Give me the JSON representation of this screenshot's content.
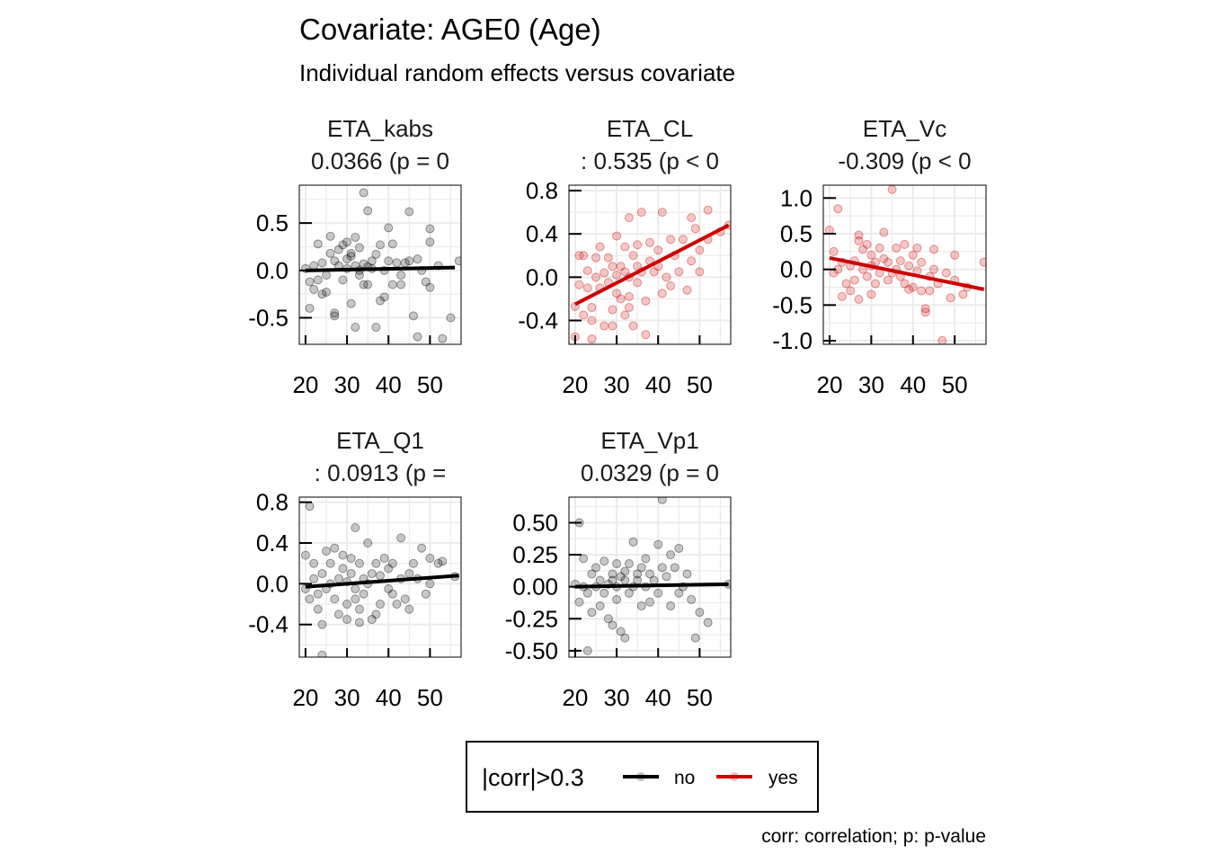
{
  "title": "Covariate: AGE0 (Age)",
  "subtitle": "Individual random effects versus covariate",
  "caption": "corr: correlation; p: p-value",
  "legend": {
    "title": "|corr|>0.3",
    "items": [
      {
        "label": "no",
        "color": "#000000"
      },
      {
        "label": "yes",
        "color": "#cc0000"
      }
    ]
  },
  "colors": {
    "no": "#000000",
    "yes": "#cc0000",
    "grid": "#ebebeb",
    "panel_border": "#000000"
  },
  "chart_data": [
    {
      "type": "scatter",
      "name": "ETA_kabs",
      "stat_label": "0.0366 (p = 0",
      "highlight": false,
      "xlim": [
        18.5,
        57.5
      ],
      "ylim": [
        -0.78,
        0.9
      ],
      "xticks": [
        20,
        30,
        40,
        50
      ],
      "yticks": [
        -0.5,
        0.0,
        0.5
      ],
      "ytick_labels": [
        "-0.5",
        "0.0",
        "0.5"
      ],
      "trend": {
        "x": [
          20,
          56
        ],
        "y": [
          0.0,
          0.03
        ]
      },
      "points": [
        [
          20,
          0.02
        ],
        [
          21,
          -0.12
        ],
        [
          21,
          -0.4
        ],
        [
          22,
          -0.2
        ],
        [
          22,
          0.05
        ],
        [
          23,
          0.28
        ],
        [
          23,
          -0.1
        ],
        [
          24,
          -0.25
        ],
        [
          24,
          0.08
        ],
        [
          25,
          -0.23
        ],
        [
          25,
          -0.05
        ],
        [
          26,
          0.18
        ],
        [
          26,
          0.36
        ],
        [
          27,
          -0.45
        ],
        [
          27,
          0.1
        ],
        [
          27,
          -0.48
        ],
        [
          28,
          0.05
        ],
        [
          28,
          0.22
        ],
        [
          29,
          0.27
        ],
        [
          29,
          -0.1
        ],
        [
          30,
          0.3
        ],
        [
          30,
          0.12
        ],
        [
          30,
          0.02
        ],
        [
          31,
          -0.35
        ],
        [
          31,
          0.15
        ],
        [
          31,
          0.18
        ],
        [
          32,
          0.35
        ],
        [
          32,
          -0.6
        ],
        [
          32,
          0.05
        ],
        [
          33,
          0.24
        ],
        [
          33,
          0.0
        ],
        [
          33,
          -0.05
        ],
        [
          34,
          -0.15
        ],
        [
          34,
          0.07
        ],
        [
          34,
          0.82
        ],
        [
          35,
          -0.15
        ],
        [
          35,
          0.63
        ],
        [
          35,
          0.04
        ],
        [
          36,
          0.1
        ],
        [
          36,
          0.02
        ],
        [
          37,
          0.17
        ],
        [
          37,
          -0.6
        ],
        [
          38,
          -0.32
        ],
        [
          38,
          0.27
        ],
        [
          39,
          -0.28
        ],
        [
          39,
          0.0
        ],
        [
          40,
          0.1
        ],
        [
          40,
          0.45
        ],
        [
          41,
          -0.15
        ],
        [
          41,
          0.28
        ],
        [
          42,
          0.08
        ],
        [
          43,
          -0.05
        ],
        [
          43,
          -0.15
        ],
        [
          44,
          0.08
        ],
        [
          45,
          0.62
        ],
        [
          45,
          0.1
        ],
        [
          46,
          -0.48
        ],
        [
          47,
          0.12
        ],
        [
          47,
          -0.7
        ],
        [
          48,
          0.0
        ],
        [
          49,
          -0.12
        ],
        [
          50,
          -0.18
        ],
        [
          50,
          0.3
        ],
        [
          50,
          0.44
        ],
        [
          52,
          0.05
        ],
        [
          53,
          -0.72
        ],
        [
          55,
          -0.5
        ],
        [
          57,
          0.1
        ]
      ]
    },
    {
      "type": "scatter",
      "name": "ETA_CL",
      "stat_label": ": 0.535 (p < 0",
      "highlight": true,
      "xlim": [
        18.5,
        57.5
      ],
      "ylim": [
        -0.62,
        0.85
      ],
      "xticks": [
        20,
        30,
        40,
        50
      ],
      "yticks": [
        -0.4,
        0.0,
        0.4,
        0.8
      ],
      "ytick_labels": [
        "-0.4",
        "0.0",
        "0.4",
        "0.8"
      ],
      "trend": {
        "x": [
          20,
          57
        ],
        "y": [
          -0.25,
          0.48
        ]
      },
      "points": [
        [
          20,
          -0.27
        ],
        [
          20,
          -0.55
        ],
        [
          21,
          -0.07
        ],
        [
          21,
          0.2
        ],
        [
          22,
          0.2
        ],
        [
          22,
          -0.35
        ],
        [
          23,
          -0.1
        ],
        [
          23,
          0.06
        ],
        [
          24,
          -0.28
        ],
        [
          24,
          -0.4
        ],
        [
          25,
          0.0
        ],
        [
          25,
          0.18
        ],
        [
          26,
          -0.1
        ],
        [
          26,
          0.28
        ],
        [
          27,
          -0.45
        ],
        [
          27,
          0.04
        ],
        [
          28,
          0.18
        ],
        [
          28,
          -0.05
        ],
        [
          29,
          -0.3
        ],
        [
          29,
          0.1
        ],
        [
          30,
          0.02
        ],
        [
          30,
          -0.15
        ],
        [
          30,
          0.38
        ],
        [
          31,
          0.1
        ],
        [
          31,
          -0.2
        ],
        [
          32,
          0.05
        ],
        [
          32,
          -0.35
        ],
        [
          32,
          0.28
        ],
        [
          33,
          -0.18
        ],
        [
          33,
          0.55
        ],
        [
          33,
          0.0
        ],
        [
          34,
          0.2
        ],
        [
          34,
          -0.45
        ],
        [
          35,
          0.1
        ],
        [
          35,
          -0.05
        ],
        [
          35,
          0.3
        ],
        [
          36,
          0.6
        ],
        [
          36,
          0.05
        ],
        [
          37,
          -0.22
        ],
        [
          37,
          -0.53
        ],
        [
          38,
          0.15
        ],
        [
          38,
          0.32
        ],
        [
          39,
          0.05
        ],
        [
          40,
          0.1
        ],
        [
          40,
          0.25
        ],
        [
          41,
          -0.15
        ],
        [
          41,
          0.6
        ],
        [
          42,
          0.0
        ],
        [
          43,
          0.35
        ],
        [
          43,
          -0.08
        ],
        [
          44,
          0.2
        ],
        [
          45,
          0.05
        ],
        [
          46,
          0.35
        ],
        [
          47,
          -0.12
        ],
        [
          48,
          0.15
        ],
        [
          48,
          0.55
        ],
        [
          49,
          0.45
        ],
        [
          50,
          0.25
        ],
        [
          50,
          0.05
        ],
        [
          52,
          0.35
        ],
        [
          52,
          0.62
        ],
        [
          55,
          0.42
        ],
        [
          57,
          0.48
        ],
        [
          24,
          -0.57
        ],
        [
          29,
          -0.45
        ],
        [
          33,
          -0.28
        ]
      ]
    },
    {
      "type": "scatter",
      "name": "ETA_Vc",
      "stat_label": "-0.309 (p < 0",
      "highlight": true,
      "xlim": [
        18.5,
        57.5
      ],
      "ylim": [
        -1.05,
        1.18
      ],
      "xticks": [
        20,
        30,
        40,
        50
      ],
      "yticks": [
        -1.0,
        -0.5,
        0.0,
        0.5,
        1.0
      ],
      "ytick_labels": [
        "-1.0",
        "-0.5",
        "0.0",
        "0.5",
        "1.0"
      ],
      "trend": {
        "x": [
          20,
          57
        ],
        "y": [
          0.16,
          -0.28
        ]
      },
      "points": [
        [
          20,
          0.55
        ],
        [
          21,
          0.25
        ],
        [
          21,
          -0.05
        ],
        [
          22,
          0.85
        ],
        [
          22,
          0.0
        ],
        [
          23,
          -0.38
        ],
        [
          23,
          0.1
        ],
        [
          24,
          -0.2
        ],
        [
          25,
          0.05
        ],
        [
          25,
          -0.3
        ],
        [
          26,
          -0.15
        ],
        [
          26,
          0.12
        ],
        [
          27,
          0.4
        ],
        [
          27,
          -0.42
        ],
        [
          28,
          0.28
        ],
        [
          28,
          0.0
        ],
        [
          29,
          0.35
        ],
        [
          29,
          -0.1
        ],
        [
          30,
          0.05
        ],
        [
          30,
          -0.35
        ],
        [
          30,
          0.2
        ],
        [
          31,
          0.1
        ],
        [
          31,
          -0.2
        ],
        [
          32,
          0.3
        ],
        [
          32,
          -0.05
        ],
        [
          33,
          0.15
        ],
        [
          33,
          0.52
        ],
        [
          34,
          -0.15
        ],
        [
          34,
          0.1
        ],
        [
          35,
          1.12
        ],
        [
          35,
          -0.05
        ],
        [
          36,
          0.3
        ],
        [
          36,
          0.0
        ],
        [
          37,
          0.12
        ],
        [
          37,
          -0.1
        ],
        [
          38,
          0.35
        ],
        [
          38,
          -0.2
        ],
        [
          39,
          0.05
        ],
        [
          40,
          -0.25
        ],
        [
          40,
          0.2
        ],
        [
          41,
          0.3
        ],
        [
          41,
          -0.02
        ],
        [
          42,
          0.1
        ],
        [
          42,
          -0.3
        ],
        [
          43,
          -0.55
        ],
        [
          43,
          -0.6
        ],
        [
          44,
          -0.1
        ],
        [
          45,
          0.0
        ],
        [
          45,
          0.28
        ],
        [
          46,
          -0.2
        ],
        [
          47,
          -1.0
        ],
        [
          48,
          -0.05
        ],
        [
          49,
          -0.4
        ],
        [
          50,
          0.2
        ],
        [
          50,
          -0.15
        ],
        [
          52,
          -0.35
        ],
        [
          53,
          -0.25
        ],
        [
          57,
          0.1
        ],
        [
          44,
          -0.3
        ],
        [
          39,
          -0.28
        ],
        [
          27,
          0.48
        ]
      ]
    },
    {
      "type": "scatter",
      "name": "ETA_Q1",
      "stat_label": ": 0.0913 (p =",
      "highlight": false,
      "xlim": [
        18.5,
        57.5
      ],
      "ylim": [
        -0.72,
        0.85
      ],
      "xticks": [
        20,
        30,
        40,
        50
      ],
      "yticks": [
        -0.4,
        0.0,
        0.4,
        0.8
      ],
      "ytick_labels": [
        "-0.4",
        "0.0",
        "0.4",
        "0.8"
      ],
      "trend": {
        "x": [
          20,
          57
        ],
        "y": [
          -0.03,
          0.08
        ]
      },
      "points": [
        [
          20,
          0.28
        ],
        [
          20,
          -0.05
        ],
        [
          21,
          0.76
        ],
        [
          21,
          -0.15
        ],
        [
          22,
          0.05
        ],
        [
          22,
          0.2
        ],
        [
          23,
          -0.1
        ],
        [
          23,
          -0.25
        ],
        [
          24,
          0.1
        ],
        [
          24,
          -0.4
        ],
        [
          25,
          0.32
        ],
        [
          25,
          -0.05
        ],
        [
          26,
          0.2
        ],
        [
          26,
          0.0
        ],
        [
          27,
          -0.15
        ],
        [
          27,
          0.35
        ],
        [
          28,
          0.05
        ],
        [
          28,
          -0.3
        ],
        [
          29,
          0.15
        ],
        [
          29,
          0.28
        ],
        [
          30,
          -0.35
        ],
        [
          30,
          0.02
        ],
        [
          30,
          -0.2
        ],
        [
          31,
          0.1
        ],
        [
          31,
          0.25
        ],
        [
          32,
          -0.05
        ],
        [
          32,
          0.55
        ],
        [
          32,
          -0.15
        ],
        [
          33,
          0.2
        ],
        [
          33,
          -0.25
        ],
        [
          34,
          0.05
        ],
        [
          34,
          -0.1
        ],
        [
          35,
          0.4
        ],
        [
          35,
          0.0
        ],
        [
          36,
          -0.35
        ],
        [
          36,
          0.1
        ],
        [
          37,
          0.2
        ],
        [
          37,
          -0.3
        ],
        [
          38,
          0.08
        ],
        [
          38,
          -0.2
        ],
        [
          39,
          0.25
        ],
        [
          40,
          -0.05
        ],
        [
          40,
          0.15
        ],
        [
          41,
          0.2
        ],
        [
          41,
          -0.1
        ],
        [
          42,
          -0.2
        ],
        [
          43,
          0.05
        ],
        [
          43,
          0.45
        ],
        [
          44,
          -0.15
        ],
        [
          45,
          0.1
        ],
        [
          45,
          -0.25
        ],
        [
          46,
          0.2
        ],
        [
          47,
          0.05
        ],
        [
          48,
          0.35
        ],
        [
          49,
          -0.1
        ],
        [
          50,
          0.25
        ],
        [
          50,
          0.0
        ],
        [
          52,
          0.2
        ],
        [
          53,
          0.22
        ],
        [
          56,
          0.07
        ],
        [
          24,
          -0.7
        ],
        [
          33,
          -0.38
        ]
      ]
    },
    {
      "type": "scatter",
      "name": "ETA_Vp1",
      "stat_label": "0.0329 (p = 0",
      "highlight": false,
      "xlim": [
        18.5,
        57.5
      ],
      "ylim": [
        -0.55,
        0.7
      ],
      "xticks": [
        20,
        30,
        40,
        50
      ],
      "yticks": [
        -0.5,
        -0.25,
        0.0,
        0.25,
        0.5
      ],
      "ytick_labels": [
        "-0.50",
        "-0.25",
        "0.00",
        "0.25",
        "0.50"
      ],
      "trend": {
        "x": [
          20,
          57
        ],
        "y": [
          0.0,
          0.02
        ]
      },
      "points": [
        [
          20,
          0.02
        ],
        [
          21,
          0.5
        ],
        [
          21,
          -0.12
        ],
        [
          22,
          0.0
        ],
        [
          22,
          0.22
        ],
        [
          23,
          -0.05
        ],
        [
          23,
          -0.5
        ],
        [
          24,
          0.1
        ],
        [
          24,
          -0.2
        ],
        [
          25,
          0.15
        ],
        [
          25,
          0.0
        ],
        [
          26,
          -0.15
        ],
        [
          26,
          0.05
        ],
        [
          27,
          0.2
        ],
        [
          27,
          -0.05
        ],
        [
          28,
          0.02
        ],
        [
          28,
          -0.25
        ],
        [
          29,
          0.1
        ],
        [
          29,
          0.05
        ],
        [
          30,
          -0.1
        ],
        [
          30,
          0.18
        ],
        [
          30,
          0.0
        ],
        [
          31,
          0.08
        ],
        [
          31,
          -0.35
        ],
        [
          32,
          -0.4
        ],
        [
          32,
          0.05
        ],
        [
          32,
          0.12
        ],
        [
          33,
          0.18
        ],
        [
          33,
          -0.05
        ],
        [
          34,
          0.35
        ],
        [
          34,
          0.0
        ],
        [
          35,
          0.1
        ],
        [
          35,
          0.05
        ],
        [
          36,
          -0.15
        ],
        [
          36,
          0.15
        ],
        [
          37,
          0.0
        ],
        [
          37,
          0.22
        ],
        [
          38,
          0.1
        ],
        [
          39,
          0.05
        ],
        [
          40,
          -0.05
        ],
        [
          40,
          0.33
        ],
        [
          41,
          0.68
        ],
        [
          41,
          0.15
        ],
        [
          42,
          0.08
        ],
        [
          43,
          -0.15
        ],
        [
          43,
          0.25
        ],
        [
          44,
          0.15
        ],
        [
          45,
          -0.05
        ],
        [
          45,
          0.3
        ],
        [
          46,
          0.0
        ],
        [
          47,
          0.1
        ],
        [
          48,
          -0.1
        ],
        [
          49,
          -0.4
        ],
        [
          50,
          -0.2
        ],
        [
          52,
          -0.28
        ],
        [
          57,
          0.02
        ],
        [
          38,
          -0.12
        ],
        [
          29,
          -0.3
        ]
      ]
    }
  ]
}
